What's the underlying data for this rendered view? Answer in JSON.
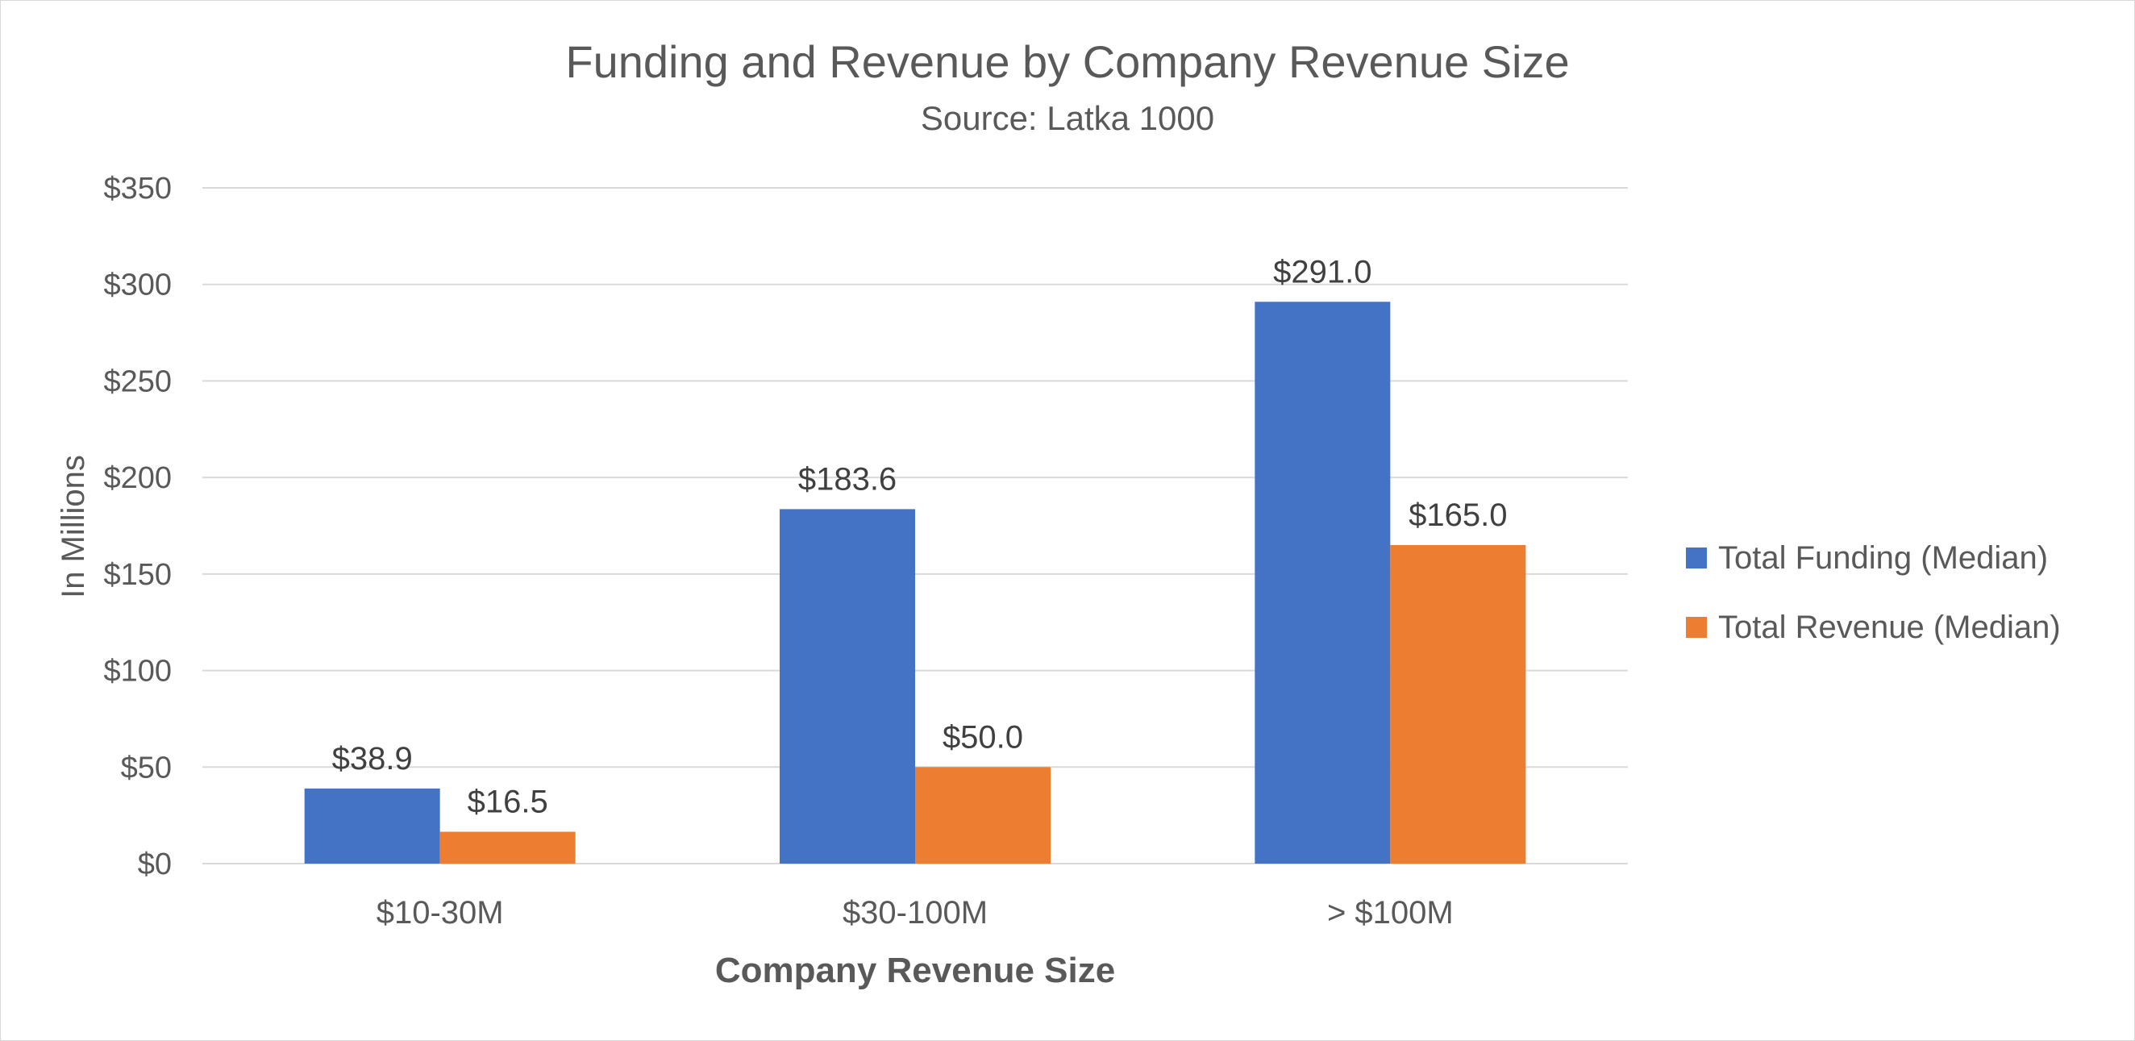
{
  "chart_data": {
    "type": "bar",
    "title": "Funding and Revenue by Company Revenue Size",
    "subtitle": "Source:  Latka 1000",
    "xlabel": "Company Revenue Size",
    "ylabel": "In Millions",
    "ylim": [
      0,
      350
    ],
    "yticks": [
      0,
      50,
      100,
      150,
      200,
      250,
      300,
      350
    ],
    "ytick_labels": [
      "$0",
      "$50",
      "$100",
      "$150",
      "$200",
      "$250",
      "$300",
      "$350"
    ],
    "grid": true,
    "legend_position": "right",
    "categories": [
      "$10-30M",
      "$30-100M",
      "> $100M"
    ],
    "series": [
      {
        "name": "Total Funding (Median)",
        "color": "#4472C4",
        "values": [
          38.9,
          183.6,
          291.0
        ],
        "labels": [
          "$38.9",
          "$183.6",
          "$291.0"
        ]
      },
      {
        "name": "Total Revenue (Median)",
        "color": "#ED7D31",
        "values": [
          16.5,
          50.0,
          165.0
        ],
        "labels": [
          "$16.5",
          "$50.0",
          "$165.0"
        ]
      }
    ]
  }
}
